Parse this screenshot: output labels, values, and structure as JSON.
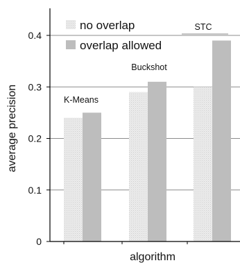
{
  "chart_data": {
    "type": "bar",
    "categories": [
      "K-Means",
      "Buckshot",
      "STC"
    ],
    "series": [
      {
        "name": "no overlap",
        "values": [
          0.24,
          0.29,
          0.3
        ]
      },
      {
        "name": "overlap allowed",
        "values": [
          0.25,
          0.31,
          0.39
        ]
      }
    ],
    "xlabel": "algorithm",
    "ylabel": "average precision",
    "ylim": [
      0,
      0.45
    ],
    "yticks": [
      "0",
      "0.1",
      "0.2",
      "0.3",
      "0.4"
    ],
    "grid": "horizontal",
    "legend_position": "top-left",
    "colors": {
      "no_overlap": "#ebebeb",
      "overlap_allowed": "#bdbdbd",
      "grid": "#8c8c8c"
    }
  }
}
